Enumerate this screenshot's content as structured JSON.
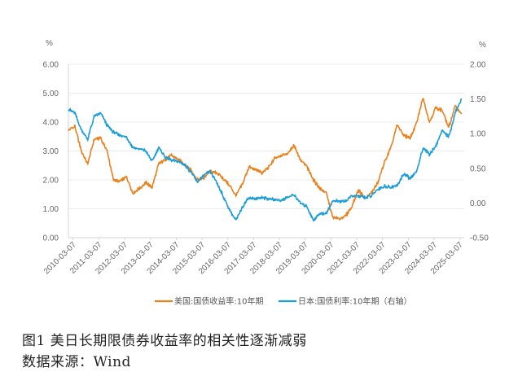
{
  "chart_data": {
    "type": "line",
    "left_axis": {
      "unit": "%",
      "min": 0,
      "max": 6,
      "ticks": [
        "0.00",
        "1.00",
        "2.00",
        "3.00",
        "4.00",
        "5.00",
        "6.00"
      ]
    },
    "right_axis": {
      "unit": "%",
      "min": -0.5,
      "max": 2.0,
      "ticks": [
        "-0.50",
        "0.00",
        "0.50",
        "1.00",
        "1.50",
        "2.00"
      ]
    },
    "x_ticks": [
      "2010-03-07",
      "2011-03-07",
      "2012-03-07",
      "2013-03-07",
      "2014-03-07",
      "2015-03-07",
      "2016-03-07",
      "2017-03-07",
      "2018-03-07",
      "2019-03-07",
      "2020-03-07",
      "2021-03-07",
      "2022-03-07",
      "2023-03-07",
      "2024-03-07",
      "2025-03-07"
    ],
    "grid": true,
    "legend_position": "bottom",
    "series": [
      {
        "name": "美国:国债收益率:10年期",
        "axis": "left",
        "color": "#E8821E",
        "x": [
          2010.0,
          2010.25,
          2010.5,
          2010.75,
          2011.0,
          2011.25,
          2011.5,
          2011.75,
          2012.0,
          2012.25,
          2012.5,
          2012.75,
          2013.0,
          2013.25,
          2013.5,
          2013.75,
          2014.0,
          2014.25,
          2014.5,
          2014.75,
          2015.0,
          2015.25,
          2015.5,
          2015.75,
          2016.0,
          2016.25,
          2016.5,
          2016.75,
          2017.0,
          2017.25,
          2017.5,
          2017.75,
          2018.0,
          2018.25,
          2018.5,
          2018.75,
          2019.0,
          2019.25,
          2019.5,
          2019.75,
          2020.0,
          2020.25,
          2020.5,
          2020.75,
          2021.0,
          2021.25,
          2021.5,
          2021.75,
          2022.0,
          2022.25,
          2022.5,
          2022.75,
          2023.0,
          2023.25,
          2023.5,
          2023.75,
          2024.0,
          2024.25,
          2024.5,
          2024.75,
          2025.0,
          2025.25
        ],
        "values": [
          3.7,
          3.85,
          3.0,
          2.55,
          3.4,
          3.45,
          3.0,
          2.0,
          1.95,
          2.1,
          1.55,
          1.7,
          1.9,
          1.75,
          2.55,
          2.7,
          2.85,
          2.7,
          2.55,
          2.35,
          2.0,
          2.05,
          2.3,
          2.25,
          2.05,
          1.8,
          1.45,
          1.85,
          2.45,
          2.35,
          2.25,
          2.4,
          2.75,
          2.85,
          2.9,
          3.2,
          2.7,
          2.45,
          2.0,
          1.7,
          1.55,
          0.7,
          0.65,
          0.75,
          1.1,
          1.65,
          1.35,
          1.55,
          1.9,
          2.6,
          3.1,
          3.9,
          3.55,
          3.45,
          3.95,
          4.85,
          4.0,
          4.5,
          4.4,
          3.8,
          4.55,
          4.3
        ]
      },
      {
        "name": "日本:国债利率:10年期（右轴）",
        "axis": "right",
        "color": "#1B9DD9",
        "x": [
          2010.0,
          2010.25,
          2010.5,
          2010.75,
          2011.0,
          2011.25,
          2011.5,
          2011.75,
          2012.0,
          2012.25,
          2012.5,
          2012.75,
          2013.0,
          2013.25,
          2013.5,
          2013.75,
          2014.0,
          2014.25,
          2014.5,
          2014.75,
          2015.0,
          2015.25,
          2015.5,
          2015.75,
          2016.0,
          2016.25,
          2016.5,
          2016.75,
          2017.0,
          2017.25,
          2017.5,
          2017.75,
          2018.0,
          2018.25,
          2018.5,
          2018.75,
          2019.0,
          2019.25,
          2019.5,
          2019.75,
          2020.0,
          2020.25,
          2020.5,
          2020.75,
          2021.0,
          2021.25,
          2021.5,
          2021.75,
          2022.0,
          2022.25,
          2022.5,
          2022.75,
          2023.0,
          2023.25,
          2023.5,
          2023.75,
          2024.0,
          2024.25,
          2024.5,
          2024.75,
          2025.0,
          2025.25
        ],
        "values": [
          1.35,
          1.3,
          1.05,
          0.92,
          1.25,
          1.3,
          1.12,
          1.02,
          0.98,
          0.95,
          0.8,
          0.78,
          0.75,
          0.6,
          0.8,
          0.66,
          0.62,
          0.6,
          0.55,
          0.45,
          0.3,
          0.4,
          0.45,
          0.3,
          0.1,
          -0.1,
          -0.25,
          -0.05,
          0.08,
          0.06,
          0.08,
          0.06,
          0.05,
          0.04,
          0.08,
          0.12,
          0.0,
          -0.05,
          -0.25,
          -0.15,
          -0.15,
          0.03,
          0.02,
          0.03,
          0.1,
          0.1,
          0.08,
          0.1,
          0.2,
          0.24,
          0.23,
          0.25,
          0.42,
          0.35,
          0.45,
          0.8,
          0.7,
          0.82,
          1.05,
          0.95,
          1.3,
          1.5
        ]
      }
    ]
  },
  "caption": {
    "title": "图1   美日长期限债券收益率的相关性逐渐减弱",
    "source": "数据来源：Wind"
  }
}
